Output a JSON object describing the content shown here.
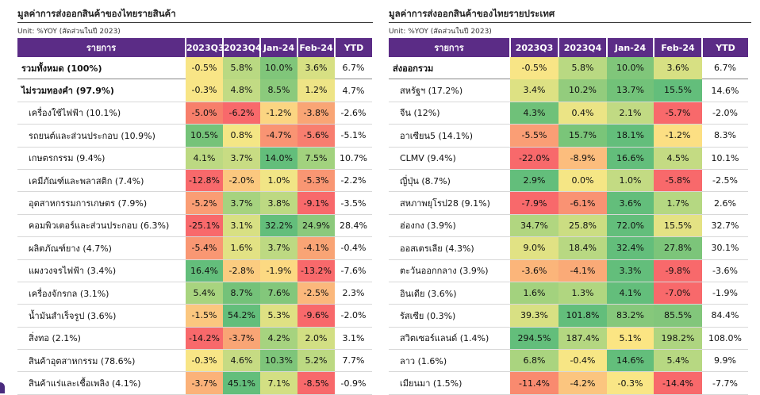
{
  "left": {
    "title": "มูลค่าการส่งออกสินค้าของไทยรายสินค้า",
    "unit": "Unit: %YOY (สัดส่วนในปี 2023)",
    "headers": [
      "รายการ",
      "2023Q3",
      "2023Q4",
      "Jan-24",
      "Feb-24",
      "YTD"
    ],
    "rows": [
      {
        "label": "รวมทั้งหมด (100%)",
        "bold": true,
        "values": [
          "-0.5%",
          "5.8%",
          "10.0%",
          "3.6%"
        ],
        "colors": [
          "#f8e586",
          "#b9d982",
          "#80c67a",
          "#d7e083"
        ],
        "ytd": "6.7%"
      },
      {
        "label": "ไม่รวมทองคำ (97.9%)",
        "bold": true,
        "values": [
          "-0.3%",
          "4.8%",
          "8.5%",
          "1.2%"
        ],
        "colors": [
          "#f8e586",
          "#c2db84",
          "#8bca7c",
          "#eee486"
        ],
        "ytd": "4.7%"
      },
      {
        "label": "เครื่องใช้ไฟฟ้า (10.1%)",
        "values": [
          "-5.0%",
          "-6.2%",
          "-1.2%",
          "-3.8%"
        ],
        "colors": [
          "#f77f6b",
          "#f8696b",
          "#fbd582",
          "#f9a575"
        ],
        "ytd": "-2.6%"
      },
      {
        "label": "รถยนต์และส่วนประกอบ (10.9%)",
        "values": [
          "10.5%",
          "0.8%",
          "-4.7%",
          "-5.6%"
        ],
        "colors": [
          "#75c379",
          "#f4e685",
          "#f99473",
          "#f87e6f"
        ],
        "ytd": "-5.1%"
      },
      {
        "label": "เกษตรกรรม (9.4%)",
        "values": [
          "4.1%",
          "3.7%",
          "14.0%",
          "7.5%"
        ],
        "colors": [
          "#bcd982",
          "#c8dc83",
          "#63be7b",
          "#a2d27e"
        ],
        "ytd": "10.7%"
      },
      {
        "label": "เคมีภัณฑ์และพลาสติก (7.4%)",
        "values": [
          "-12.8%",
          "-2.0%",
          "1.0%",
          "-5.3%"
        ],
        "colors": [
          "#f8696b",
          "#fbc87f",
          "#f1e586",
          "#f99673"
        ],
        "ytd": "-2.2%"
      },
      {
        "label": "อุตสาหกรรมการเกษตร (7.9%)",
        "values": [
          "-5.2%",
          "3.7%",
          "3.8%",
          "-9.1%"
        ],
        "colors": [
          "#fa9d74",
          "#a6d37f",
          "#bdd982",
          "#f8696b"
        ],
        "ytd": "-3.5%"
      },
      {
        "label": "คอมพิวเตอร์และส่วนประกอบ (6.3%)",
        "values": [
          "-25.1%",
          "3.1%",
          "32.2%",
          "24.9%"
        ],
        "colors": [
          "#f8696b",
          "#d8e083",
          "#63be7b",
          "#8cc97c"
        ],
        "ytd": "28.4%"
      },
      {
        "label": "ผลิตภัณฑ์ยาง (4.7%)",
        "values": [
          "-5.4%",
          "1.6%",
          "3.7%",
          "-4.1%"
        ],
        "colors": [
          "#f99773",
          "#e2e284",
          "#bdd982",
          "#f9a475"
        ],
        "ytd": "-0.4%"
      },
      {
        "label": "แผงวงจรไฟฟ้า (3.4%)",
        "values": [
          "16.4%",
          "-2.8%",
          "-1.9%",
          "-13.2%"
        ],
        "colors": [
          "#63be7b",
          "#fbcc80",
          "#fcd982",
          "#f8696b"
        ],
        "ytd": "-7.6%"
      },
      {
        "label": "เครื่องจักรกล (3.1%)",
        "values": [
          "5.4%",
          "8.7%",
          "7.6%",
          "-2.5%"
        ],
        "colors": [
          "#a8d47f",
          "#74c279",
          "#83c77b",
          "#fbb87c"
        ],
        "ytd": "2.3%"
      },
      {
        "label": "น้ำมันสำเร็จรูป (3.6%)",
        "values": [
          "-1.5%",
          "54.2%",
          "5.3%",
          "-9.6%"
        ],
        "colors": [
          "#fbc77f",
          "#63be7b",
          "#dfe183",
          "#f8696b"
        ],
        "ytd": "-2.0%"
      },
      {
        "label": "สิ่งทอ (2.1%)",
        "values": [
          "-14.2%",
          "-3.7%",
          "4.2%",
          "2.0%"
        ],
        "colors": [
          "#f8696b",
          "#f9a575",
          "#a6d37f",
          "#d2df83"
        ],
        "ytd": "3.1%"
      },
      {
        "label": "สินค้าอุตสาหกรรม (78.6%)",
        "values": [
          "-0.3%",
          "4.6%",
          "10.3%",
          "5.2%"
        ],
        "colors": [
          "#f8e586",
          "#c6db83",
          "#7ec57a",
          "#bcd982"
        ],
        "ytd": "7.7%"
      },
      {
        "label": "สินค้าแร่และเชื้อเพลิง (4.1%)",
        "values": [
          "-3.7%",
          "45.1%",
          "7.1%",
          "-8.5%"
        ],
        "colors": [
          "#fbb279",
          "#63be7b",
          "#d3df83",
          "#f8696b"
        ],
        "ytd": "-0.9%"
      }
    ]
  },
  "right": {
    "title": "มูลค่าการส่งออกสินค้าของไทยรายประเทศ",
    "unit": "Unit: %YOY (สัดส่วนในปี 2023)",
    "headers": [
      "รายการ",
      "2023Q3",
      "2023Q4",
      "Jan-24",
      "Feb-24",
      "YTD"
    ],
    "rows": [
      {
        "label": "ส่งออกรวม",
        "bold": true,
        "values": [
          "-0.5%",
          "5.8%",
          "10.0%",
          "3.6%"
        ],
        "colors": [
          "#f8e586",
          "#b9d982",
          "#80c67a",
          "#d7e083"
        ],
        "ytd": "6.7%"
      },
      {
        "label": "สหรัฐฯ (17.2%)",
        "values": [
          "3.4%",
          "10.2%",
          "13.7%",
          "15.5%"
        ],
        "colors": [
          "#dde183",
          "#93cc7d",
          "#72c279",
          "#63be7b"
        ],
        "ytd": "14.6%"
      },
      {
        "label": "จีน (12%)",
        "values": [
          "4.3%",
          "0.4%",
          "2.1%",
          "-5.7%"
        ],
        "colors": [
          "#6fc179",
          "#ebe485",
          "#c1da83",
          "#f8696b"
        ],
        "ytd": "-2.0%"
      },
      {
        "label": "อาเซียน5 (14.1%)",
        "values": [
          "-5.5%",
          "15.7%",
          "18.1%",
          "-1.2%"
        ],
        "colors": [
          "#fa9e75",
          "#7ac579",
          "#63be7b",
          "#fcdf83"
        ],
        "ytd": "8.3%"
      },
      {
        "label": "CLMV (9.4%)",
        "values": [
          "-22.0%",
          "-8.9%",
          "16.6%",
          "4.5%"
        ],
        "colors": [
          "#f8696b",
          "#fcbd7d",
          "#63be7b",
          "#c4db83"
        ],
        "ytd": "10.1%"
      },
      {
        "label": "ญี่ปุ่น (8.7%)",
        "values": [
          "2.9%",
          "0.0%",
          "1.0%",
          "-5.8%"
        ],
        "colors": [
          "#63be7b",
          "#f5e685",
          "#c3db83",
          "#f8696b"
        ],
        "ytd": "-2.5%"
      },
      {
        "label": "สหภาพยุโรป28 (9.1%)",
        "values": [
          "-7.9%",
          "-6.1%",
          "3.6%",
          "1.7%"
        ],
        "colors": [
          "#f8696b",
          "#f99273",
          "#63be7b",
          "#b5d882"
        ],
        "ytd": "2.6%"
      },
      {
        "label": "ฮ่องกง (3.9%)",
        "values": [
          "34.7%",
          "25.8%",
          "72.0%",
          "15.5%"
        ],
        "colors": [
          "#b1d680",
          "#cbdd82",
          "#63be7b",
          "#e4e284"
        ],
        "ytd": "32.7%"
      },
      {
        "label": "ออสเตรเลีย (4.3%)",
        "values": [
          "9.0%",
          "18.4%",
          "32.4%",
          "27.8%"
        ],
        "colors": [
          "#e1e284",
          "#b8d882",
          "#63be7b",
          "#7cc57a"
        ],
        "ytd": "30.1%"
      },
      {
        "label": "ตะวันออกกลาง (3.9%)",
        "values": [
          "-3.6%",
          "-4.1%",
          "3.3%",
          "-9.8%"
        ],
        "colors": [
          "#fbb57a",
          "#faaa77",
          "#63be7b",
          "#f8696b"
        ],
        "ytd": "-3.6%"
      },
      {
        "label": "อินเดีย (3.6%)",
        "values": [
          "1.6%",
          "1.3%",
          "4.1%",
          "-7.0%"
        ],
        "colors": [
          "#a3d27e",
          "#b0d680",
          "#63be7b",
          "#f8696b"
        ],
        "ytd": "-1.9%"
      },
      {
        "label": "รัสเซีย (0.3%)",
        "values": [
          "39.3%",
          "101.8%",
          "83.2%",
          "85.5%"
        ],
        "colors": [
          "#d8e083",
          "#63be7b",
          "#86c87b",
          "#82c67b"
        ],
        "ytd": "84.4%"
      },
      {
        "label": "สวิตเซอร์แลนด์ (1.4%)",
        "values": [
          "294.5%",
          "187.4%",
          "5.1%",
          "198.2%"
        ],
        "colors": [
          "#63be7b",
          "#b4d781",
          "#fbe583",
          "#aed580"
        ],
        "ytd": "108.0%"
      },
      {
        "label": "ลาว (1.6%)",
        "values": [
          "6.8%",
          "-0.4%",
          "14.6%",
          "5.4%"
        ],
        "colors": [
          "#aad47f",
          "#f7e685",
          "#63be7b",
          "#b7d882"
        ],
        "ytd": "9.9%"
      },
      {
        "label": "เมียนมา (1.5%)",
        "values": [
          "-11.4%",
          "-4.2%",
          "-0.3%",
          "-14.4%"
        ],
        "colors": [
          "#f98a6f",
          "#fbc57f",
          "#f9e686",
          "#f8696b"
        ],
        "ytd": "-7.7%"
      }
    ]
  }
}
